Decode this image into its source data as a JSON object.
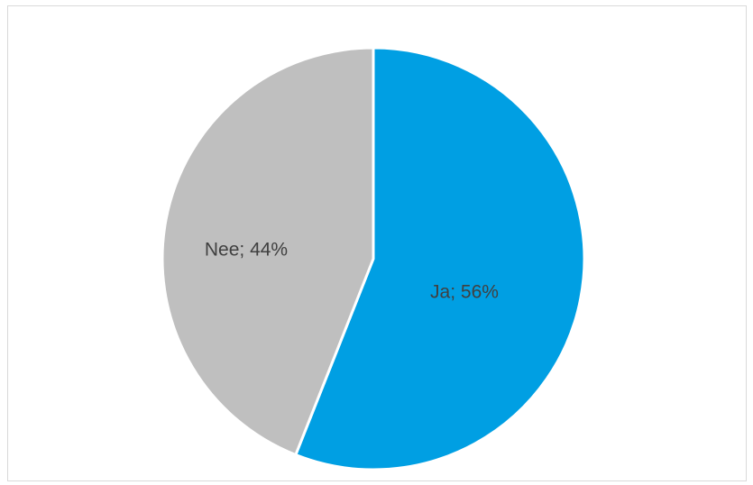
{
  "chart_data": {
    "type": "pie",
    "title": "",
    "slices": [
      {
        "label": "Ja",
        "value": 56,
        "data_label": "Ja; 56%",
        "color": "#009fe3"
      },
      {
        "label": "Nee",
        "value": 44,
        "data_label": "Nee; 44%",
        "color": "#bfbfbf"
      }
    ],
    "start_angle_deg": 0,
    "direction": "clockwise",
    "legend": "none"
  }
}
